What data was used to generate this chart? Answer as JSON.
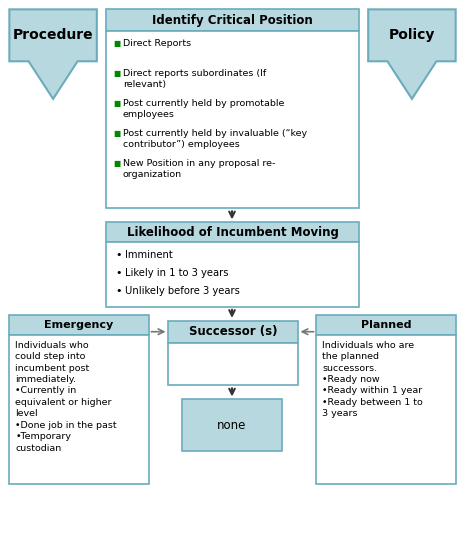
{
  "bg_color": "#ffffff",
  "box_header_bg": "#b8d8e0",
  "box_body_bg": "#ffffff",
  "box_border": "#6aacbc",
  "green_bullet": "#008800",
  "black_bullet": "#000000",
  "identify_title": "Identify Critical Position",
  "identify_bullets": [
    [
      "green",
      "Direct Reports"
    ],
    [
      "green",
      "Direct reports subordinates (If\nrelevant)"
    ],
    [
      "green",
      "Post currently held by promotable\nemployees"
    ],
    [
      "green",
      "Post currently held by invaluable (“key\ncontributor”) employees"
    ],
    [
      "green",
      "New Position in any proposal re-\norganization"
    ]
  ],
  "likelihood_title": "Likelihood of Incumbent Moving",
  "likelihood_bullets": [
    "Imminent",
    "Likely in 1 to 3 years",
    "Unlikely before 3 years"
  ],
  "successor_title": "Successor (s)",
  "none_label": "none",
  "emergency_title": "Emergency",
  "emergency_text": "Individuals who\ncould step into\nincumbent post\nimmediately.\n•Currently in\nequivalent or higher\nlevel\n•Done job in the past\n•Temporary\ncustodian",
  "planned_title": "Planned",
  "planned_text": "Individuals who are\nthe planned\nsuccessors.\n•Ready now\n•Ready within 1 year\n•Ready between 1 to\n3 years",
  "procedure_label": "Procedure",
  "policy_label": "Policy",
  "fig_w": 4.65,
  "fig_h": 5.52,
  "dpi": 100
}
